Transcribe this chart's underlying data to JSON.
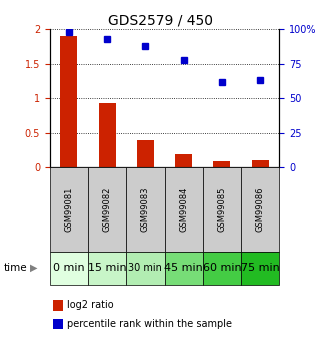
{
  "title": "GDS2579 / 450",
  "samples": [
    "GSM99081",
    "GSM99082",
    "GSM99083",
    "GSM99084",
    "GSM99085",
    "GSM99086"
  ],
  "time_labels": [
    "0 min",
    "15 min",
    "30 min",
    "45 min",
    "60 min",
    "75 min"
  ],
  "log2_ratio": [
    1.9,
    0.93,
    0.4,
    0.2,
    0.09,
    0.1
  ],
  "percentile_rank": [
    98,
    93,
    88,
    78,
    62,
    63
  ],
  "bar_color": "#cc2200",
  "dot_color": "#0000cc",
  "ylim_left": [
    0,
    2
  ],
  "ylim_right": [
    0,
    100
  ],
  "yticks_left": [
    0,
    0.5,
    1.0,
    1.5,
    2.0
  ],
  "ytick_labels_left": [
    "0",
    "0.5",
    "1",
    "1.5",
    "2"
  ],
  "yticks_right": [
    0,
    25,
    50,
    75,
    100
  ],
  "ytick_labels_right": [
    "0",
    "25",
    "50",
    "75",
    "100%"
  ],
  "time_bg_colors": [
    "#e0ffe0",
    "#c8f5c8",
    "#b2edb2",
    "#77dd77",
    "#44cc44",
    "#22bb22"
  ],
  "sample_bg_color": "#cccccc",
  "legend_ratio_color": "#cc2200",
  "legend_pct_color": "#0000cc",
  "time_label_fontsize": [
    8,
    8,
    7,
    8,
    8,
    8
  ]
}
